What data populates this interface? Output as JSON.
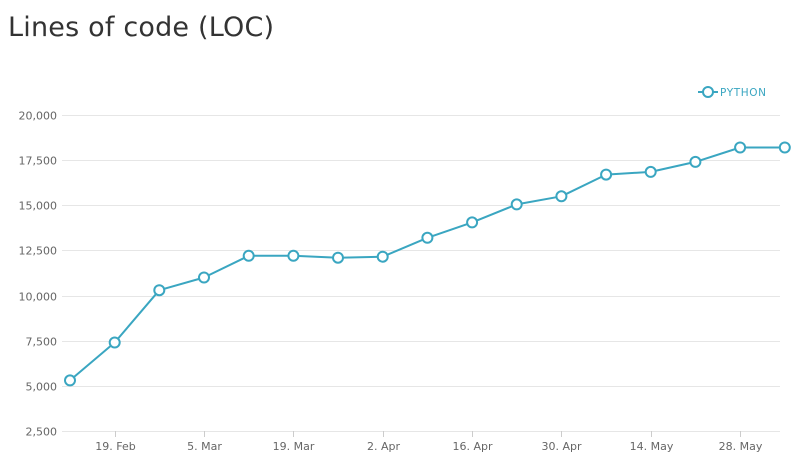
{
  "page": {
    "title": "Lines of code (LOC)"
  },
  "colors": {
    "series": "#3aa6c1",
    "grid": "#e6e6e6",
    "axis_text": "#666666",
    "title": "#333333"
  },
  "chart_data": {
    "type": "line",
    "title": "Lines of code (LOC)",
    "xlabel": "",
    "ylabel": "",
    "ylim": [
      2500,
      20000
    ],
    "yticks": [
      2500,
      5000,
      7500,
      10000,
      12500,
      15000,
      17500,
      20000
    ],
    "ytick_labels": [
      "2,500",
      "5,000",
      "7,500",
      "10,000",
      "12,500",
      "15,000",
      "17,500",
      "20,000"
    ],
    "xlim": [
      "2019-02-12",
      "2019-06-02"
    ],
    "xticks": [
      "2019-02-19",
      "2019-03-05",
      "2019-03-19",
      "2019-04-02",
      "2019-04-16",
      "2019-04-30",
      "2019-05-14",
      "2019-05-28"
    ],
    "xtick_labels": [
      "19. Feb",
      "5. Mar",
      "19. Mar",
      "2. Apr",
      "16. Apr",
      "30. Apr",
      "14. May",
      "28. May"
    ],
    "grid": true,
    "legend_position": "top-right",
    "series": [
      {
        "name": "PYTHON",
        "x": [
          "2019-02-12",
          "2019-02-19",
          "2019-02-26",
          "2019-03-05",
          "2019-03-12",
          "2019-03-19",
          "2019-03-26",
          "2019-04-02",
          "2019-04-09",
          "2019-04-16",
          "2019-04-23",
          "2019-04-30",
          "2019-05-07",
          "2019-05-14",
          "2019-05-21",
          "2019-05-28",
          "2019-06-04"
        ],
        "values": [
          5300,
          7400,
          10300,
          11000,
          12200,
          12200,
          12100,
          12150,
          13200,
          14050,
          15050,
          15500,
          16700,
          16850,
          17400,
          18200,
          18200
        ]
      }
    ]
  }
}
